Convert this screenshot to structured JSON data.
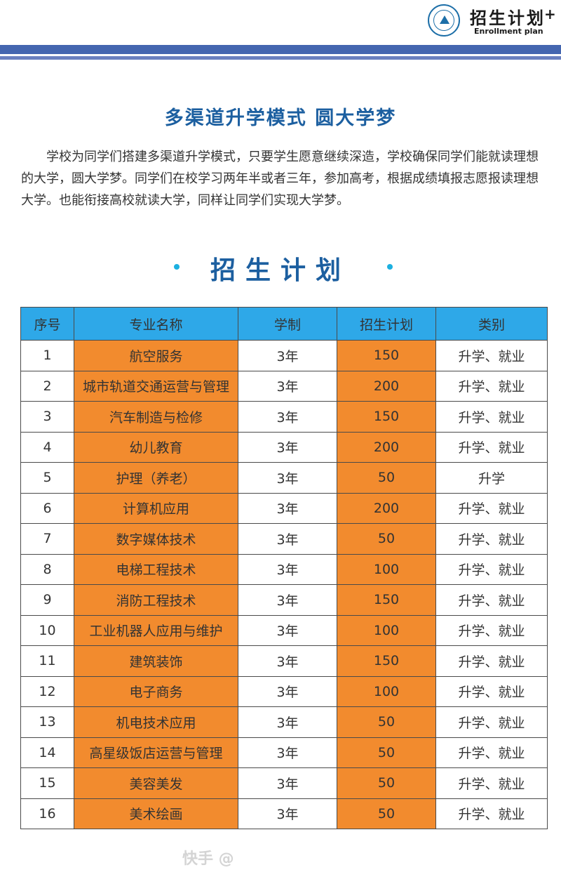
{
  "header": {
    "title": "招生计划",
    "plus": "+",
    "subtitle": "Enrollment plan"
  },
  "slogan": "多渠道升学模式 圆大学梦",
  "intro": "学校为同学们搭建多渠道升学模式，只要学生愿意继续深造，学校确保同学们能就读理想的大学，圆大学梦。同学们在校学习两年半或者三年，参加高考，根据成绩填报志愿报读理想大学。也能衔接高校就读大学，同样让同学们实现大学梦。",
  "section_title": "招生计划",
  "table": {
    "headers": [
      "序号",
      "专业名称",
      "学制",
      "招生计划",
      "类别"
    ],
    "rows": [
      [
        "1",
        "航空服务",
        "3年",
        "150",
        "升学、就业"
      ],
      [
        "2",
        "城市轨道交通运营与管理",
        "3年",
        "200",
        "升学、就业"
      ],
      [
        "3",
        "汽车制造与检修",
        "3年",
        "150",
        "升学、就业"
      ],
      [
        "4",
        "幼儿教育",
        "3年",
        "200",
        "升学、就业"
      ],
      [
        "5",
        "护理（养老）",
        "3年",
        "50",
        "升学"
      ],
      [
        "6",
        "计算机应用",
        "3年",
        "200",
        "升学、就业"
      ],
      [
        "7",
        "数字媒体技术",
        "3年",
        "50",
        "升学、就业"
      ],
      [
        "8",
        "电梯工程技术",
        "3年",
        "100",
        "升学、就业"
      ],
      [
        "9",
        "消防工程技术",
        "3年",
        "150",
        "升学、就业"
      ],
      [
        "10",
        "工业机器人应用与维护",
        "3年",
        "100",
        "升学、就业"
      ],
      [
        "11",
        "建筑装饰",
        "3年",
        "150",
        "升学、就业"
      ],
      [
        "12",
        "电子商务",
        "3年",
        "100",
        "升学、就业"
      ],
      [
        "13",
        "机电技术应用",
        "3年",
        "50",
        "升学、就业"
      ],
      [
        "14",
        "高星级饭店运营与管理",
        "3年",
        "50",
        "升学、就业"
      ],
      [
        "15",
        "美容美发",
        "3年",
        "50",
        "升学、就业"
      ],
      [
        "16",
        "美术绘画",
        "3年",
        "50",
        "升学、就业"
      ]
    ]
  },
  "watermark": "快手 @",
  "colors": {
    "band": "#4466b0",
    "title": "#1c5fa0",
    "header_cell": "#2ea8e8",
    "highlight_cell": "#f28b2e"
  }
}
